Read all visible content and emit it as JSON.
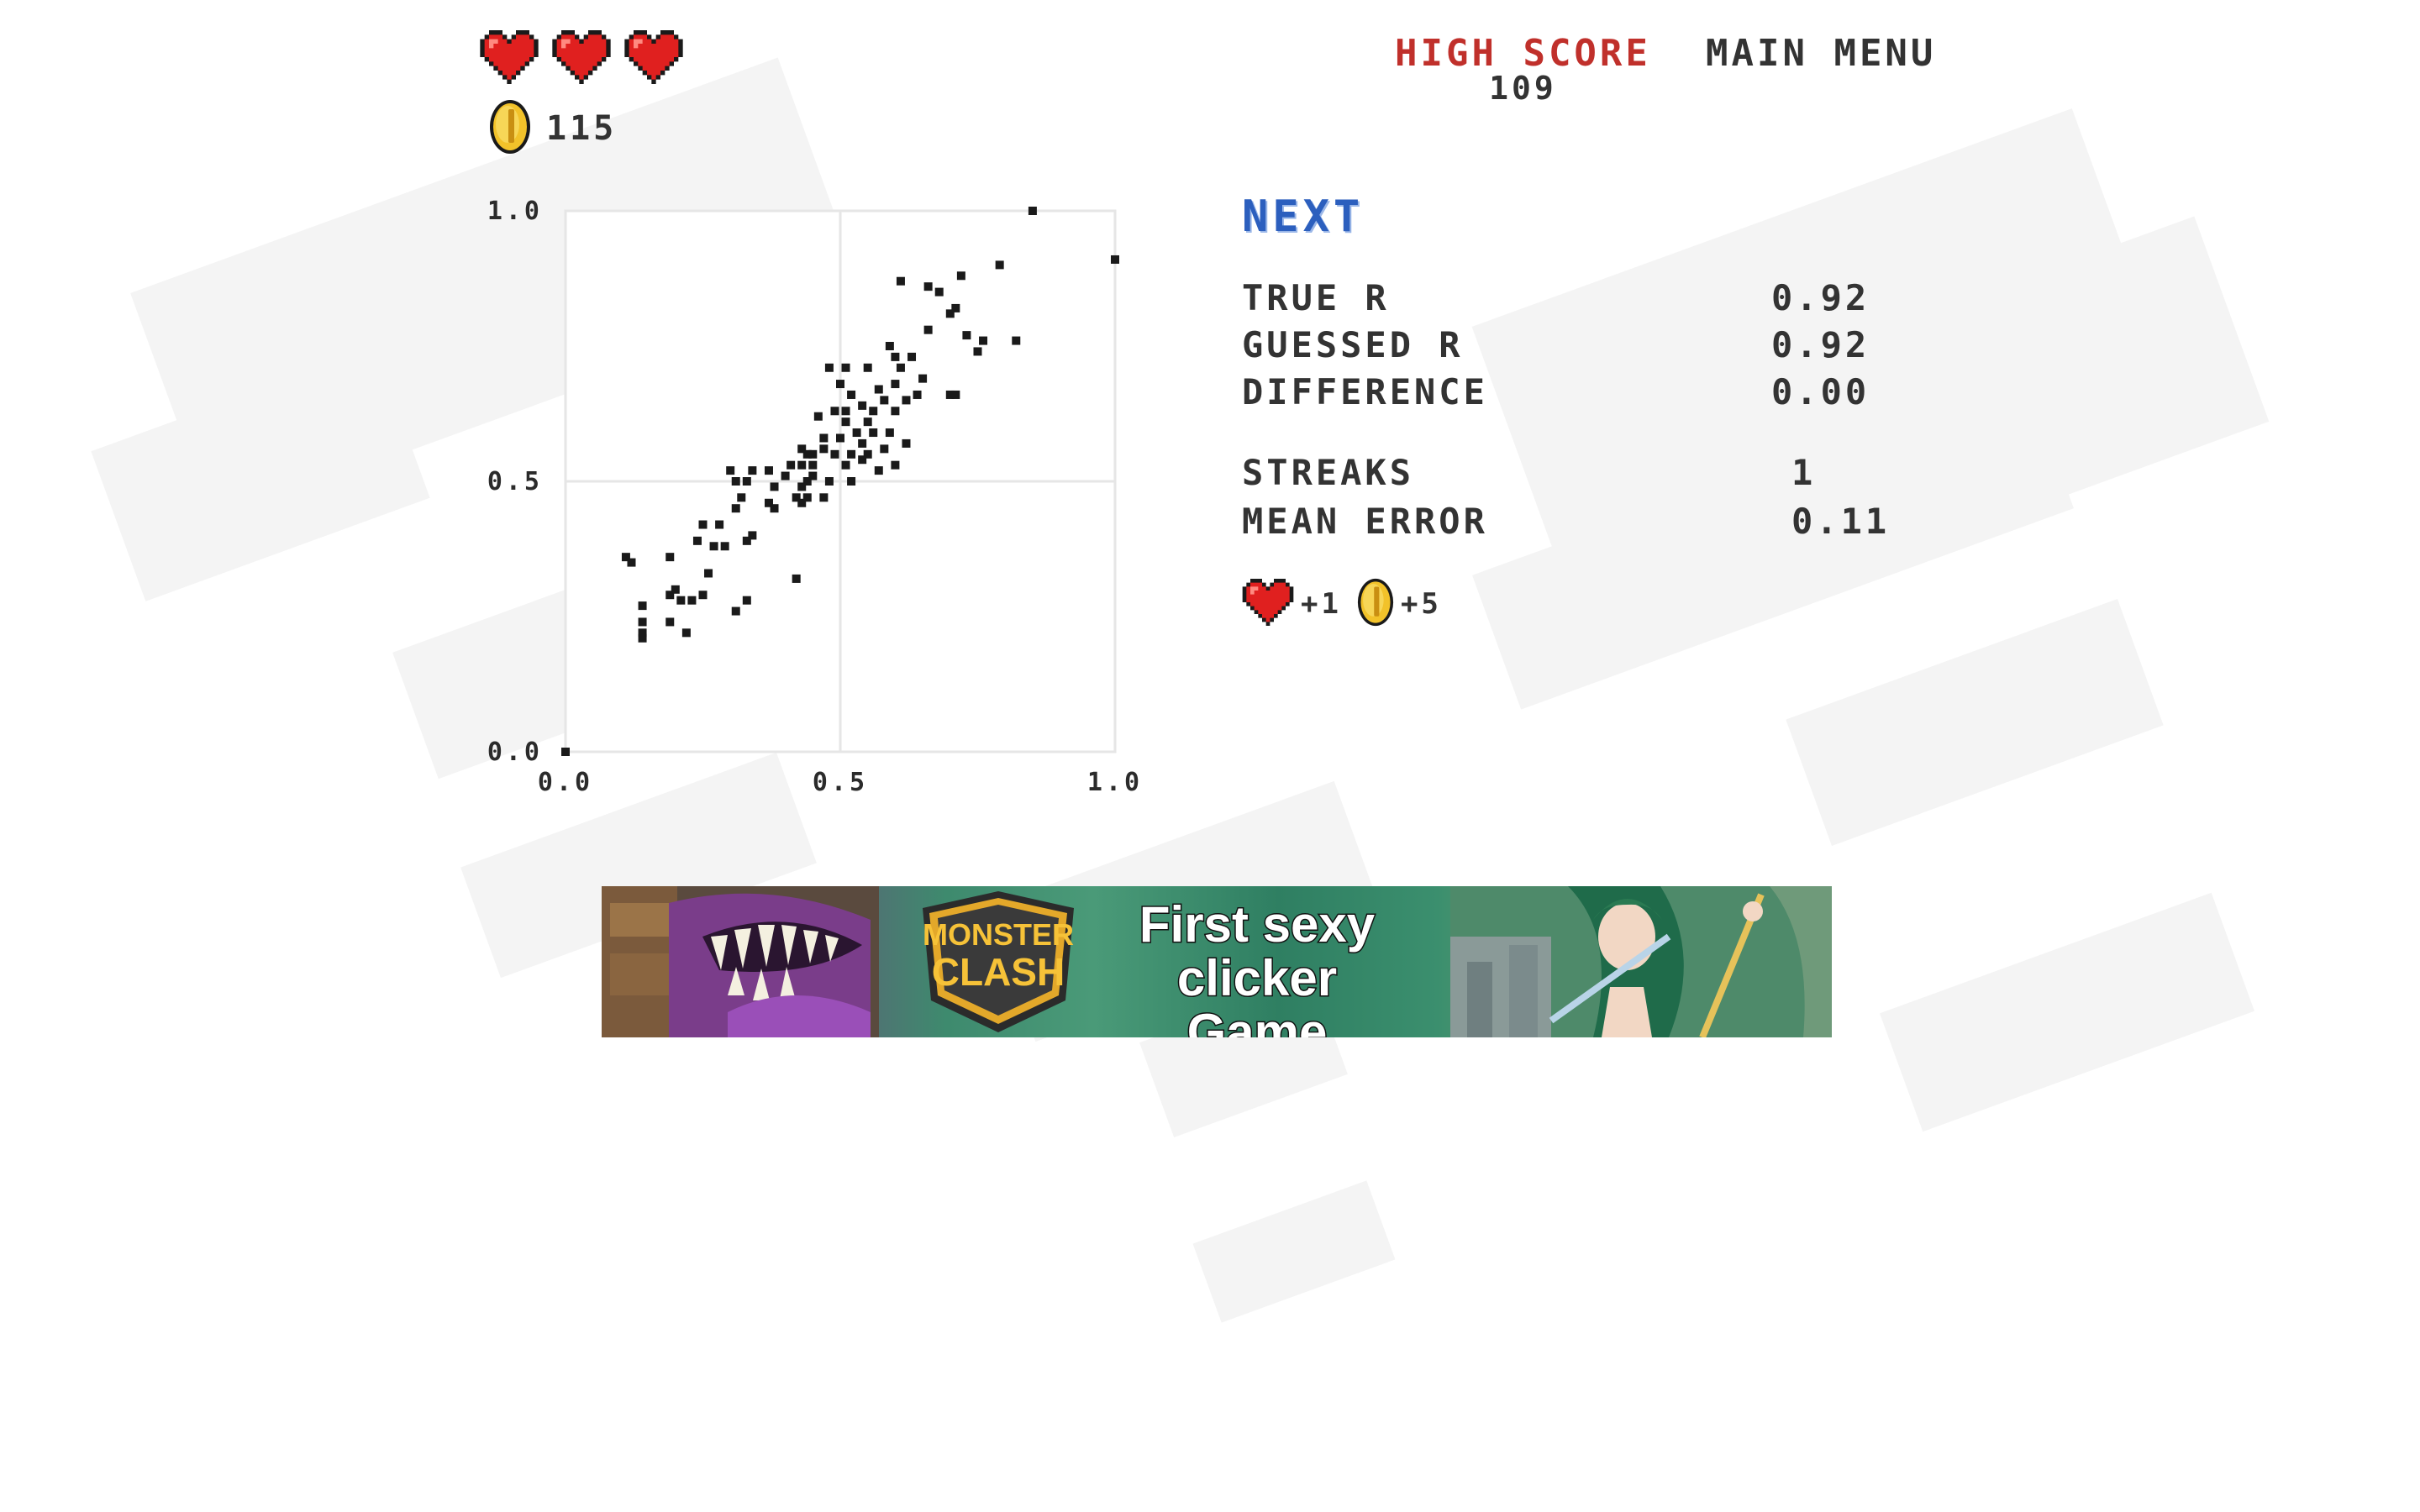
{
  "header": {
    "lives": 3,
    "coins": "115",
    "high_score_label": "HIGH SCORE",
    "high_score_value": "109",
    "main_menu_label": "MAIN MENU"
  },
  "panel": {
    "next_label": "NEXT",
    "stats": [
      {
        "label": "TRUE R",
        "value": "0.92"
      },
      {
        "label": "GUESSED R",
        "value": "0.92"
      },
      {
        "label": "DIFFERENCE",
        "value": "0.00"
      },
      {
        "label": "STREAKS",
        "value": "1"
      },
      {
        "label": "MEAN ERROR",
        "value": "0.11"
      }
    ],
    "rewards": {
      "life": "+1",
      "coin": "+5"
    }
  },
  "ad": {
    "logo_line1": "MONSTER",
    "logo_line2": "CLASH",
    "tagline_line1": "First sexy",
    "tagline_line2": "clicker Game"
  },
  "chart_data": {
    "type": "scatter",
    "xlim": [
      0,
      1
    ],
    "ylim": [
      0,
      1
    ],
    "x_ticks": [
      "0.0",
      "0.5",
      "1.0"
    ],
    "y_ticks": [
      "0.0",
      "0.5",
      "1.0"
    ],
    "grid": true,
    "points": [
      [
        0.0,
        0.0
      ],
      [
        0.85,
        1.0
      ],
      [
        1.0,
        0.91
      ],
      [
        0.61,
        0.87
      ],
      [
        0.66,
        0.86
      ],
      [
        0.68,
        0.85
      ],
      [
        0.72,
        0.88
      ],
      [
        0.79,
        0.9
      ],
      [
        0.7,
        0.81
      ],
      [
        0.71,
        0.82
      ],
      [
        0.66,
        0.78
      ],
      [
        0.73,
        0.77
      ],
      [
        0.76,
        0.76
      ],
      [
        0.82,
        0.76
      ],
      [
        0.59,
        0.75
      ],
      [
        0.6,
        0.73
      ],
      [
        0.63,
        0.73
      ],
      [
        0.75,
        0.74
      ],
      [
        0.61,
        0.71
      ],
      [
        0.65,
        0.69
      ],
      [
        0.48,
        0.71
      ],
      [
        0.51,
        0.71
      ],
      [
        0.55,
        0.71
      ],
      [
        0.5,
        0.68
      ],
      [
        0.57,
        0.67
      ],
      [
        0.6,
        0.68
      ],
      [
        0.62,
        0.65
      ],
      [
        0.64,
        0.66
      ],
      [
        0.7,
        0.66
      ],
      [
        0.71,
        0.66
      ],
      [
        0.52,
        0.66
      ],
      [
        0.54,
        0.64
      ],
      [
        0.58,
        0.65
      ],
      [
        0.49,
        0.63
      ],
      [
        0.51,
        0.63
      ],
      [
        0.56,
        0.63
      ],
      [
        0.46,
        0.62
      ],
      [
        0.6,
        0.63
      ],
      [
        0.51,
        0.61
      ],
      [
        0.55,
        0.61
      ],
      [
        0.53,
        0.59
      ],
      [
        0.56,
        0.59
      ],
      [
        0.47,
        0.58
      ],
      [
        0.5,
        0.58
      ],
      [
        0.54,
        0.57
      ],
      [
        0.59,
        0.59
      ],
      [
        0.62,
        0.57
      ],
      [
        0.43,
        0.56
      ],
      [
        0.45,
        0.55
      ],
      [
        0.47,
        0.56
      ],
      [
        0.44,
        0.55
      ],
      [
        0.49,
        0.55
      ],
      [
        0.52,
        0.55
      ],
      [
        0.55,
        0.55
      ],
      [
        0.58,
        0.56
      ],
      [
        0.43,
        0.53
      ],
      [
        0.45,
        0.53
      ],
      [
        0.51,
        0.53
      ],
      [
        0.54,
        0.54
      ],
      [
        0.57,
        0.52
      ],
      [
        0.6,
        0.53
      ],
      [
        0.3,
        0.52
      ],
      [
        0.34,
        0.52
      ],
      [
        0.37,
        0.52
      ],
      [
        0.4,
        0.51
      ],
      [
        0.41,
        0.53
      ],
      [
        0.45,
        0.51
      ],
      [
        0.48,
        0.5
      ],
      [
        0.31,
        0.5
      ],
      [
        0.33,
        0.5
      ],
      [
        0.38,
        0.49
      ],
      [
        0.43,
        0.49
      ],
      [
        0.44,
        0.5
      ],
      [
        0.52,
        0.5
      ],
      [
        0.32,
        0.47
      ],
      [
        0.37,
        0.46
      ],
      [
        0.42,
        0.47
      ],
      [
        0.44,
        0.47
      ],
      [
        0.47,
        0.47
      ],
      [
        0.31,
        0.45
      ],
      [
        0.38,
        0.45
      ],
      [
        0.43,
        0.46
      ],
      [
        0.25,
        0.42
      ],
      [
        0.28,
        0.42
      ],
      [
        0.34,
        0.4
      ],
      [
        0.27,
        0.38
      ],
      [
        0.29,
        0.38
      ],
      [
        0.33,
        0.39
      ],
      [
        0.24,
        0.39
      ],
      [
        0.11,
        0.36
      ],
      [
        0.12,
        0.35
      ],
      [
        0.19,
        0.36
      ],
      [
        0.26,
        0.33
      ],
      [
        0.42,
        0.32
      ],
      [
        0.2,
        0.3
      ],
      [
        0.19,
        0.29
      ],
      [
        0.23,
        0.28
      ],
      [
        0.25,
        0.29
      ],
      [
        0.21,
        0.28
      ],
      [
        0.33,
        0.28
      ],
      [
        0.14,
        0.27
      ],
      [
        0.31,
        0.26
      ],
      [
        0.14,
        0.24
      ],
      [
        0.19,
        0.24
      ],
      [
        0.14,
        0.22
      ],
      [
        0.22,
        0.22
      ],
      [
        0.14,
        0.21
      ]
    ]
  },
  "colors": {
    "high_score": "#c0302b",
    "next": "#2c5fbe",
    "heart": "#e0201f",
    "coin": "#f2c22a"
  }
}
